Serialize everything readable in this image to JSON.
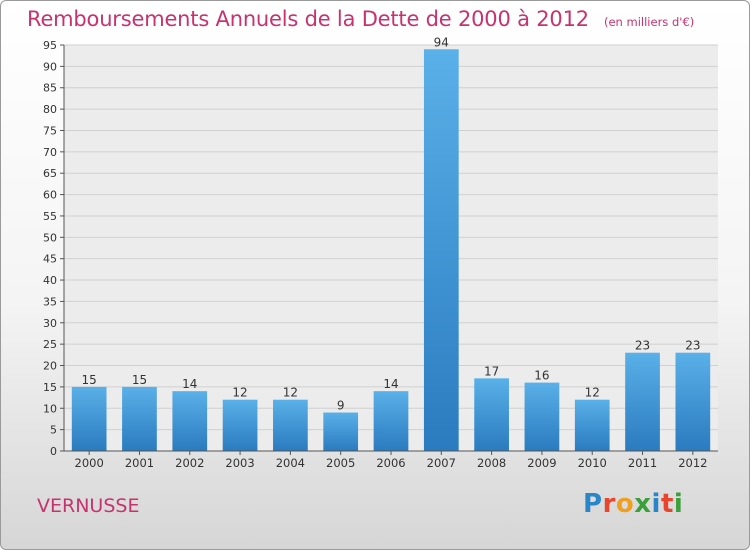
{
  "chart_data": {
    "type": "bar",
    "title": "Remboursements Annuels de la Dette de 2000 à 2012",
    "subtitle": "(en milliers d'€)",
    "categories": [
      "2000",
      "2001",
      "2002",
      "2003",
      "2004",
      "2005",
      "2006",
      "2007",
      "2008",
      "2009",
      "2010",
      "2011",
      "2012"
    ],
    "values": [
      15,
      15,
      14,
      12,
      12,
      9,
      14,
      94,
      17,
      16,
      12,
      23,
      23
    ],
    "ylim": [
      0,
      95
    ],
    "yticks": [
      0,
      5,
      10,
      15,
      20,
      25,
      30,
      35,
      40,
      45,
      50,
      55,
      60,
      65,
      70,
      75,
      80,
      85,
      90,
      95
    ],
    "grid": true,
    "bar_color": "#3d8fd0"
  },
  "footer": {
    "commune": "VERNUSSE",
    "logo": "Proxiti"
  }
}
